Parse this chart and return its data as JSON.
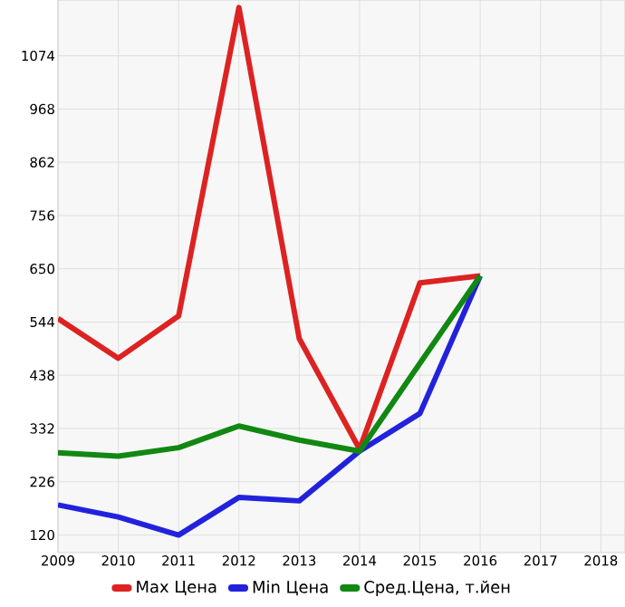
{
  "chart_data": {
    "type": "line",
    "xlim": [
      2009,
      2018.4
    ],
    "ylim": [
      85,
      1185
    ],
    "xticks": [
      2009,
      2010,
      2011,
      2012,
      2013,
      2014,
      2015,
      2016,
      2017,
      2018
    ],
    "yticks": [
      120,
      226,
      332,
      438,
      544,
      650,
      756,
      862,
      968,
      1074
    ],
    "x": [
      2009,
      2010,
      2011,
      2012,
      2013,
      2014,
      2015,
      2016
    ],
    "grid": true,
    "legend": "bottom",
    "marker": "none",
    "line_style": "solid",
    "series": [
      {
        "name": "Max Цена",
        "color": "#dd2222",
        "values": [
          551,
          472,
          556,
          1170,
          511,
          291,
          622,
          636
        ]
      },
      {
        "name": "Min Цена",
        "color": "#2222dd",
        "values": [
          180,
          156,
          120,
          195,
          188,
          287,
          362,
          636
        ]
      },
      {
        "name": "Сред.Цена, т.йен",
        "color": "#118811",
        "values": [
          284,
          277,
          294,
          337,
          309,
          287,
          462,
          636
        ]
      }
    ]
  }
}
